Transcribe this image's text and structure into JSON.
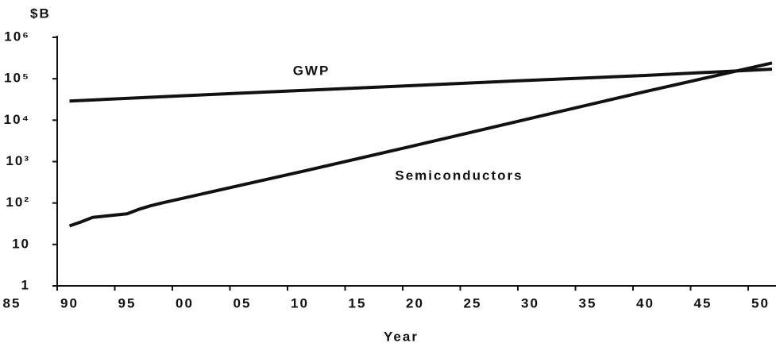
{
  "chart_data": {
    "type": "line",
    "y_axis_label": "$B",
    "x_axis_label": "Year",
    "log_scale_y": true,
    "xlim": [
      1985,
      2051
    ],
    "xticks": [
      {
        "value": 1985,
        "label": "85"
      },
      {
        "value": 1990,
        "label": "90"
      },
      {
        "value": 1995,
        "label": "95"
      },
      {
        "value": 2000,
        "label": "00"
      },
      {
        "value": 2005,
        "label": "05"
      },
      {
        "value": 2010,
        "label": "10"
      },
      {
        "value": 2015,
        "label": "15"
      },
      {
        "value": 2020,
        "label": "20"
      },
      {
        "value": 2025,
        "label": "25"
      },
      {
        "value": 2030,
        "label": "30"
      },
      {
        "value": 2035,
        "label": "35"
      },
      {
        "value": 2040,
        "label": "40"
      },
      {
        "value": 2045,
        "label": "45"
      },
      {
        "value": 2050,
        "label": "50"
      }
    ],
    "ylim": [
      1,
      1000000
    ],
    "yticks": [
      1,
      10,
      {
        "value": 100,
        "label": "10²"
      },
      {
        "value": 1000,
        "label": "10³"
      },
      {
        "value": 10000,
        "label": "10⁴"
      },
      {
        "value": 100000,
        "label": "10⁵"
      },
      {
        "value": 1000000,
        "label": "10⁶"
      }
    ],
    "series": [
      {
        "name": "GWP",
        "color": "#111111",
        "x": [
          1990,
          2000,
          2010,
          2020,
          2030,
          2040,
          2051
        ],
        "values": [
          29000,
          39000,
          52000,
          69000,
          92000,
          120000,
          170000
        ]
      },
      {
        "name": "Semiconductors",
        "color": "#111111",
        "x": [
          1990,
          1991,
          1992,
          1993,
          1995,
          1996,
          1997,
          1998,
          2010,
          2020,
          2030,
          2040,
          2051
        ],
        "values": [
          28,
          35,
          45,
          48,
          55,
          70,
          85,
          100,
          560,
          2450,
          11000,
          49000,
          240000
        ]
      }
    ]
  }
}
